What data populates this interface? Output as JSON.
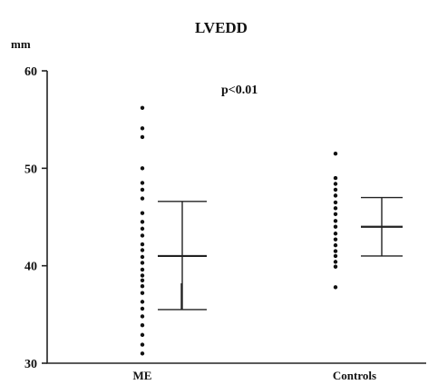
{
  "chart_data": {
    "type": "scatter",
    "title": "LVEDD",
    "ylabel": "mm",
    "annotation": "p<0.01",
    "ylim": [
      30,
      60
    ],
    "yticks": [
      30,
      40,
      50,
      60
    ],
    "categories": [
      "ME",
      "Controls"
    ],
    "grid": false,
    "series": [
      {
        "category": "ME",
        "values": [
          56.2,
          54.1,
          53.2,
          50.0,
          48.5,
          47.8,
          46.9,
          45.4,
          44.5,
          43.8,
          43.1,
          42.2,
          41.6,
          40.9,
          40.3,
          39.6,
          39.0,
          38.5,
          37.9,
          37.2,
          36.3,
          35.6,
          34.8,
          33.9,
          32.9,
          31.9,
          31.0
        ],
        "mean": 41.0,
        "sd_upper": 46.6,
        "sd_lower": 35.5,
        "sd_lower_inner": 38.2
      },
      {
        "category": "Controls",
        "values": [
          51.5,
          49.0,
          48.4,
          47.8,
          47.2,
          46.5,
          45.9,
          45.3,
          44.6,
          44.0,
          43.3,
          42.7,
          42.1,
          41.5,
          41.0,
          40.4,
          39.9,
          37.8
        ],
        "mean": 44.0,
        "sd_upper": 47.0,
        "sd_lower": 41.0
      }
    ]
  }
}
